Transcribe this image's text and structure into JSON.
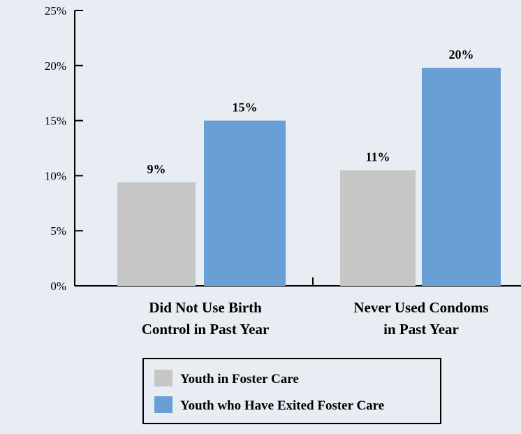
{
  "chart_data": {
    "type": "bar",
    "categories": [
      [
        "Did Not Use Birth",
        "Control in Past Year"
      ],
      [
        "Never Used Condoms",
        "in Past Year"
      ]
    ],
    "series": [
      {
        "name": "Youth in Foster Care",
        "values": [
          9.4,
          10.5
        ],
        "labels": [
          "9%",
          "11%"
        ],
        "color": "#c6c6c6"
      },
      {
        "name": "Youth who Have Exited Foster Care",
        "values": [
          15,
          19.8
        ],
        "labels": [
          "15%",
          "20%"
        ],
        "color": "#6a9fd5"
      }
    ],
    "ylim": [
      0,
      25
    ],
    "yticks": [
      0,
      5,
      10,
      15,
      20,
      25
    ],
    "ytick_labels": [
      "0%",
      "5%",
      "10%",
      "15%",
      "20%",
      "25%"
    ],
    "legend_position": "bottom",
    "grid": false
  }
}
